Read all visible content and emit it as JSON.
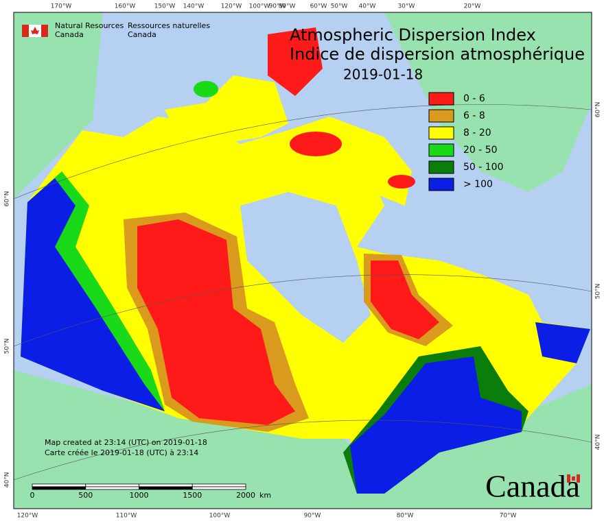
{
  "header": {
    "agency_en": "Natural Resources",
    "agency_en_2": "Canada",
    "agency_fr": "Ressources naturelles",
    "agency_fr_2": "Canada"
  },
  "title": {
    "line1": "Atmospheric Dispersion Index",
    "line2": "Indice de dispersion atmosphérique",
    "date": "2019-01-18"
  },
  "legend": [
    {
      "label": "0 - 6",
      "color": "#ff1a1a"
    },
    {
      "label": "6 - 8",
      "color": "#d99a1e"
    },
    {
      "label": "8 - 20",
      "color": "#ffff00"
    },
    {
      "label": "20 - 50",
      "color": "#19d919"
    },
    {
      "label": "50 - 100",
      "color": "#0a7d0a"
    },
    {
      "label": "> 100",
      "color": "#0a1ee6"
    }
  ],
  "graticule": {
    "top": [
      "170°W",
      "160°W",
      "150°W",
      "140°W",
      "120°W",
      "100°W",
      "90°W",
      "80°W",
      "60°W",
      "50°W",
      "40°W",
      "30°W",
      "20°W"
    ],
    "bottom": [
      "120°W",
      "110°W",
      "100°W",
      "90°W",
      "80°W",
      "70°W"
    ],
    "left": [
      "60°N",
      "50°N",
      "40°N"
    ],
    "right": [
      "60°N",
      "50°N",
      "40°N"
    ]
  },
  "credits": {
    "line1": "Map created at 23:14 (UTC) on 2019-01-18",
    "line2": "Carte créée le 2019-01-18 (UTC) à 23:14"
  },
  "scale_bar": {
    "ticks": [
      0,
      500,
      1000,
      1500,
      2000
    ],
    "unit": "km"
  },
  "wordmark": "Canada"
}
